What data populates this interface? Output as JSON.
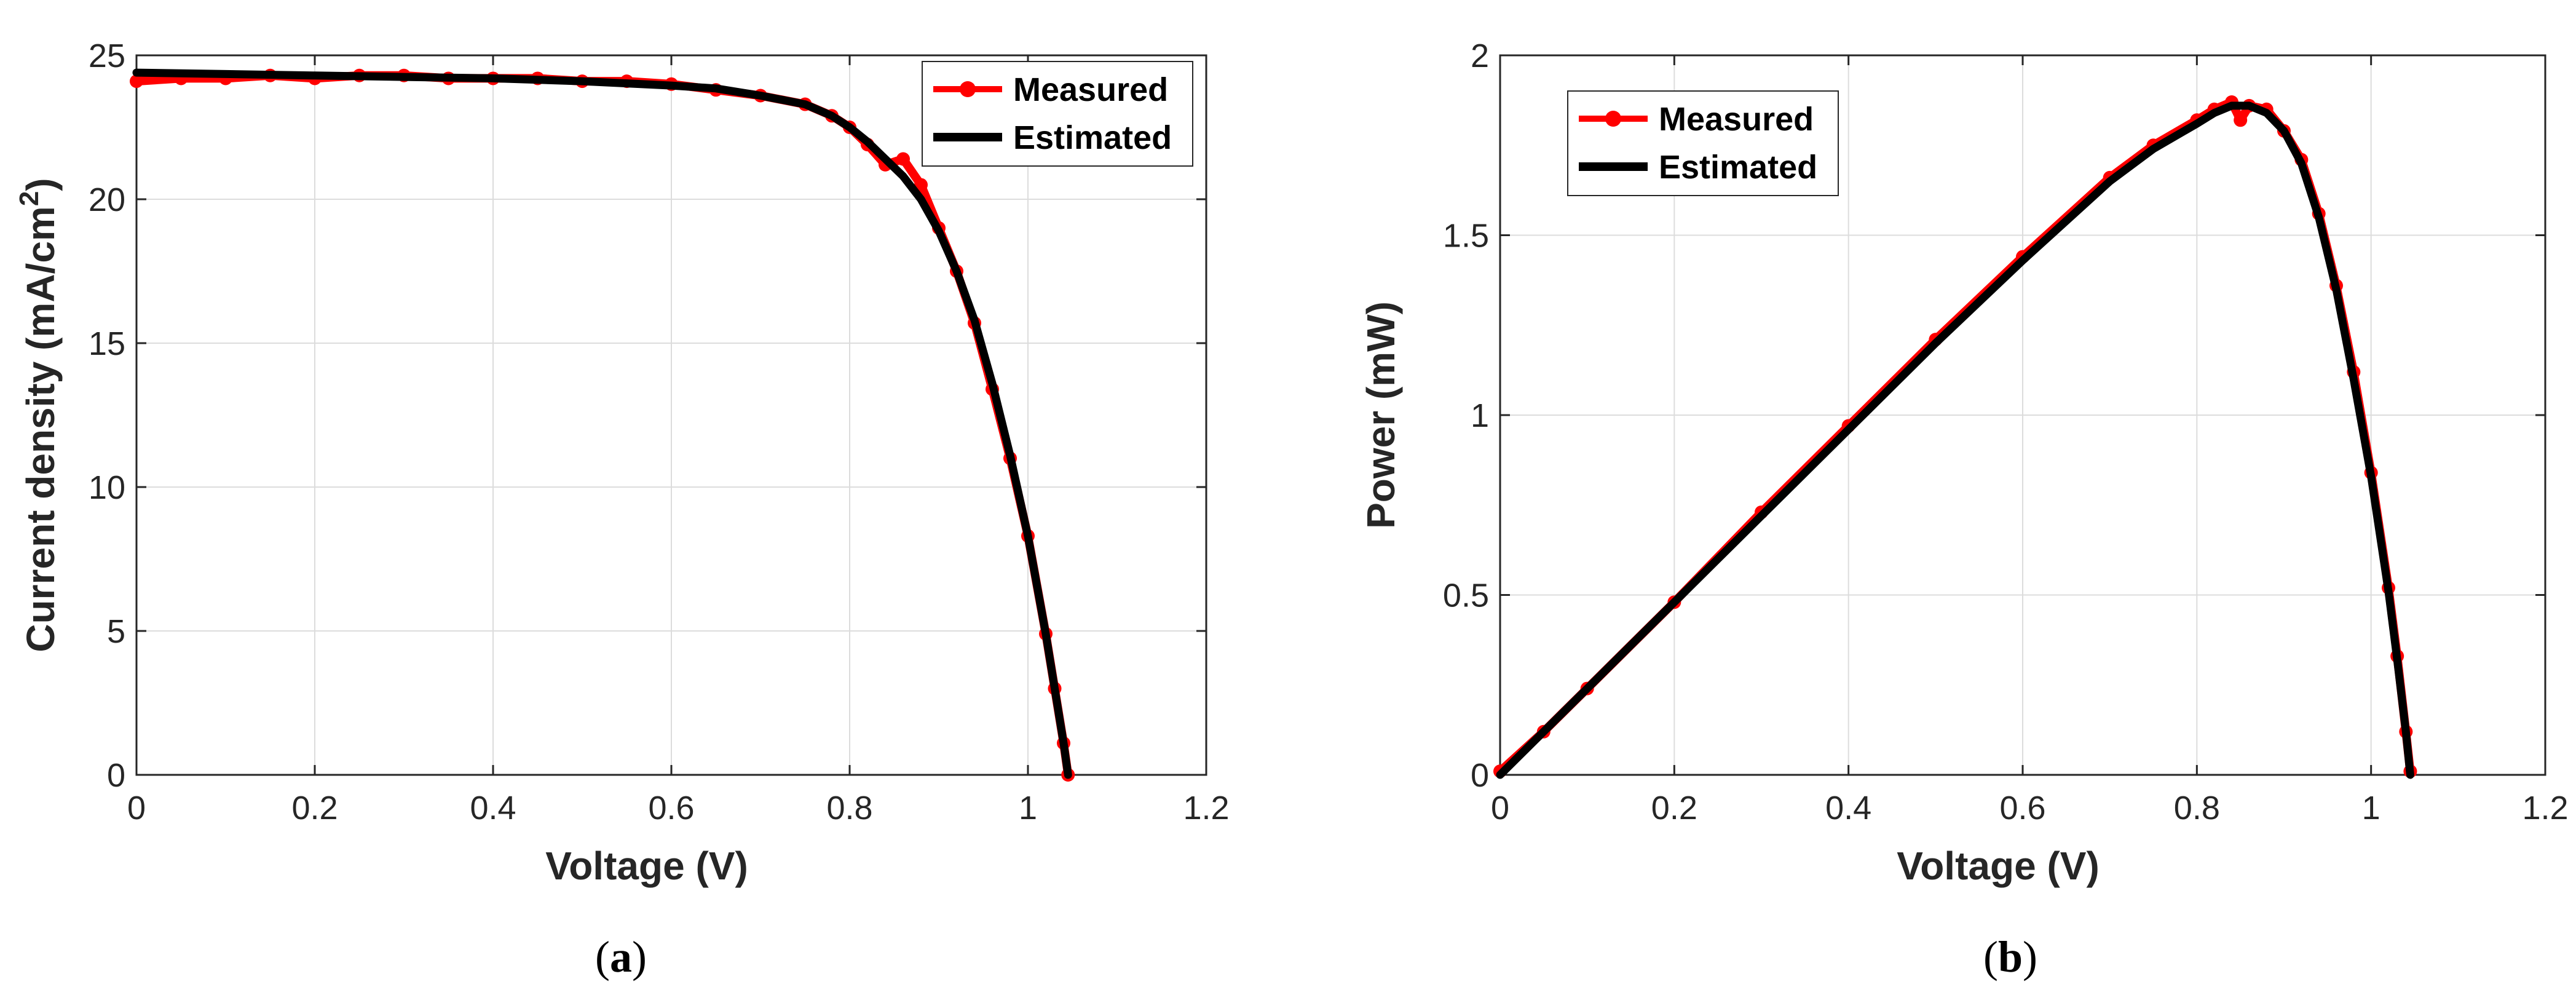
{
  "chart_data": [
    {
      "type": "line",
      "panel": "a",
      "caption_letter": "a",
      "xlabel": "Voltage (V)",
      "ylabel_main": "Current density (mA/cm",
      "ylabel_sup": "2",
      "ylabel_close": ")",
      "xlim": [
        0,
        1.2
      ],
      "ylim": [
        0,
        25
      ],
      "xticks": [
        "0",
        "0.2",
        "0.4",
        "0.6",
        "0.8",
        "1",
        "1.2"
      ],
      "yticks": [
        "0",
        "5",
        "10",
        "15",
        "20",
        "25"
      ],
      "grid": true,
      "legend_position": "top-right",
      "series": [
        {
          "name": "Measured",
          "color": "#ff0000",
          "marker": "circle",
          "x": [
            0.0,
            0.05,
            0.1,
            0.15,
            0.2,
            0.25,
            0.3,
            0.35,
            0.4,
            0.45,
            0.5,
            0.55,
            0.6,
            0.65,
            0.7,
            0.75,
            0.78,
            0.8,
            0.82,
            0.84,
            0.86,
            0.88,
            0.9,
            0.92,
            0.94,
            0.96,
            0.98,
            1.0,
            1.02,
            1.03,
            1.04,
            1.045
          ],
          "y": [
            24.1,
            24.2,
            24.2,
            24.3,
            24.2,
            24.3,
            24.3,
            24.2,
            24.2,
            24.2,
            24.1,
            24.1,
            24.0,
            23.8,
            23.6,
            23.3,
            22.9,
            22.5,
            21.9,
            21.2,
            21.4,
            20.5,
            19.0,
            17.5,
            15.7,
            13.4,
            11.0,
            8.3,
            4.9,
            3.0,
            1.1,
            0.0
          ]
        },
        {
          "name": "Estimated",
          "color": "#000000",
          "marker": "none",
          "x": [
            0.0,
            0.1,
            0.2,
            0.3,
            0.4,
            0.5,
            0.6,
            0.65,
            0.7,
            0.75,
            0.78,
            0.8,
            0.82,
            0.84,
            0.86,
            0.88,
            0.9,
            0.92,
            0.94,
            0.96,
            0.98,
            1.0,
            1.02,
            1.03,
            1.04,
            1.045
          ],
          "y": [
            24.4,
            24.35,
            24.3,
            24.25,
            24.2,
            24.1,
            23.95,
            23.85,
            23.6,
            23.3,
            22.9,
            22.5,
            22.0,
            21.4,
            20.8,
            20.0,
            18.9,
            17.5,
            15.8,
            13.6,
            11.1,
            8.3,
            4.9,
            3.0,
            1.1,
            0.0
          ]
        }
      ]
    },
    {
      "type": "line",
      "panel": "b",
      "caption_letter": "b",
      "xlabel": "Voltage (V)",
      "ylabel": "Power (mW)",
      "xlim": [
        0,
        1.2
      ],
      "ylim": [
        0,
        2
      ],
      "xticks": [
        "0",
        "0.2",
        "0.4",
        "0.6",
        "0.8",
        "1",
        "1.2"
      ],
      "yticks": [
        "0",
        "0.5",
        "1",
        "1.5",
        "2"
      ],
      "grid": true,
      "legend_position": "top-left",
      "series": [
        {
          "name": "Measured",
          "color": "#ff0000",
          "marker": "circle",
          "x": [
            0.0,
            0.05,
            0.1,
            0.2,
            0.3,
            0.4,
            0.5,
            0.6,
            0.7,
            0.75,
            0.8,
            0.82,
            0.84,
            0.85,
            0.86,
            0.88,
            0.9,
            0.92,
            0.94,
            0.96,
            0.98,
            1.0,
            1.02,
            1.03,
            1.04,
            1.045
          ],
          "y": [
            0.01,
            0.12,
            0.24,
            0.48,
            0.73,
            0.97,
            1.21,
            1.44,
            1.66,
            1.75,
            1.82,
            1.85,
            1.87,
            1.82,
            1.86,
            1.85,
            1.79,
            1.71,
            1.56,
            1.36,
            1.12,
            0.84,
            0.52,
            0.33,
            0.12,
            0.01
          ]
        },
        {
          "name": "Estimated",
          "color": "#000000",
          "marker": "none",
          "x": [
            0.0,
            0.05,
            0.1,
            0.2,
            0.3,
            0.4,
            0.5,
            0.6,
            0.7,
            0.75,
            0.8,
            0.82,
            0.84,
            0.86,
            0.88,
            0.9,
            0.92,
            0.94,
            0.96,
            0.98,
            1.0,
            1.02,
            1.03,
            1.04,
            1.045
          ],
          "y": [
            0.0,
            0.12,
            0.24,
            0.48,
            0.72,
            0.96,
            1.2,
            1.43,
            1.65,
            1.74,
            1.81,
            1.84,
            1.86,
            1.86,
            1.84,
            1.79,
            1.7,
            1.55,
            1.35,
            1.1,
            0.83,
            0.51,
            0.32,
            0.12,
            0.0
          ]
        }
      ]
    }
  ]
}
